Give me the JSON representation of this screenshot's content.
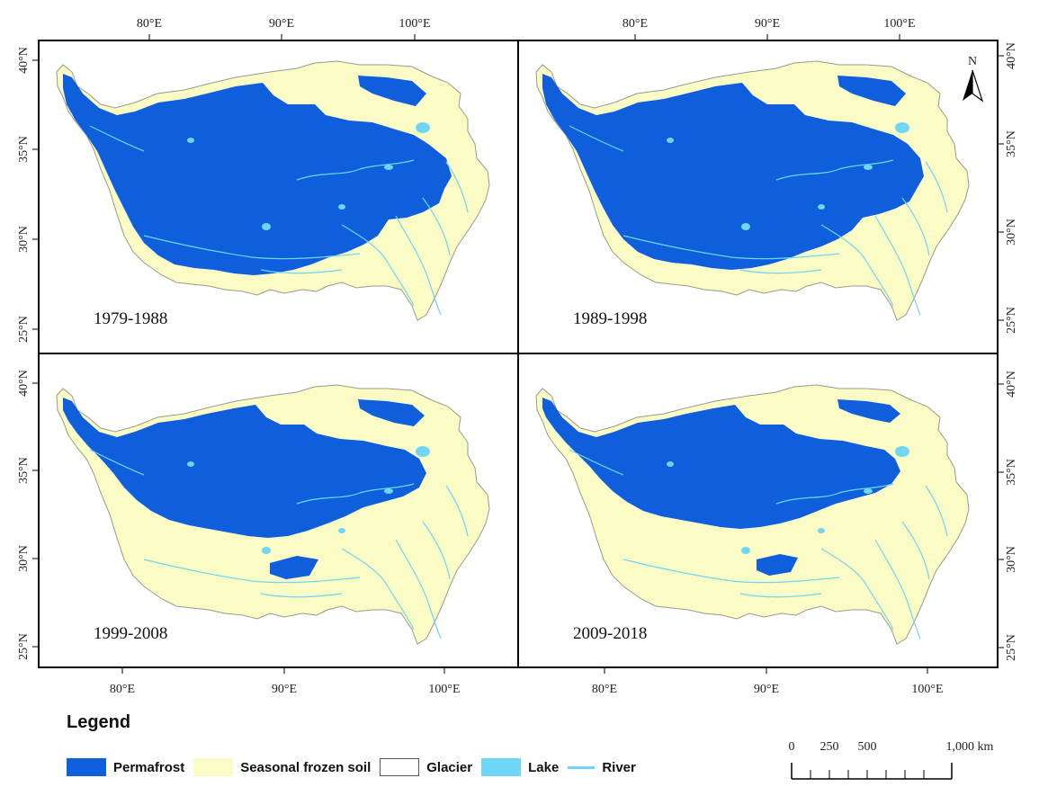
{
  "colors": {
    "permafrost": "#0f5fdc",
    "seasonal": "#fbfbc6",
    "glacier": "#ffffff",
    "lake": "#6fd6f5",
    "river": "#6fd6f5",
    "outline": "#9a9a8a"
  },
  "panels": [
    {
      "label": "1979-1988"
    },
    {
      "label": "1989-1998"
    },
    {
      "label": "1999-2008"
    },
    {
      "label": "2009-2018"
    }
  ],
  "axes": {
    "top_ticks": [
      "80°E",
      "90°E",
      "100°E"
    ],
    "bottom_left_ticks": [
      "80°E",
      "90°E",
      "100°E"
    ],
    "bottom_right_ticks": [
      "80°E",
      "90°E",
      "100°E"
    ],
    "left_top_ticks": [
      "40°N",
      "35°N",
      "30°N",
      "25°N"
    ],
    "left_bottom_ticks": [
      "40°N",
      "35°N",
      "30°N",
      "25°N"
    ],
    "right_top_ticks": [
      "40°N",
      "35°N",
      "30°N",
      "25°N"
    ],
    "right_bottom_ticks": [
      "40°N",
      "35°N",
      "30°N",
      "25°N"
    ]
  },
  "north_arrow": {
    "label": "N",
    "icon": "north-arrow-icon"
  },
  "legend": {
    "title": "Legend",
    "items": [
      {
        "label": "Permafrost",
        "kind": "fill",
        "color_key": "permafrost"
      },
      {
        "label": "Seasonal frozen soil",
        "kind": "fill",
        "color_key": "seasonal"
      },
      {
        "label": "Glacier",
        "kind": "fill",
        "color_key": "glacier"
      },
      {
        "label": "Lake",
        "kind": "fill",
        "color_key": "lake"
      },
      {
        "label": "River",
        "kind": "line",
        "color_key": "river"
      }
    ]
  },
  "scale_bar": {
    "labels": [
      "0",
      "250",
      "500",
      "1,000 km"
    ]
  }
}
